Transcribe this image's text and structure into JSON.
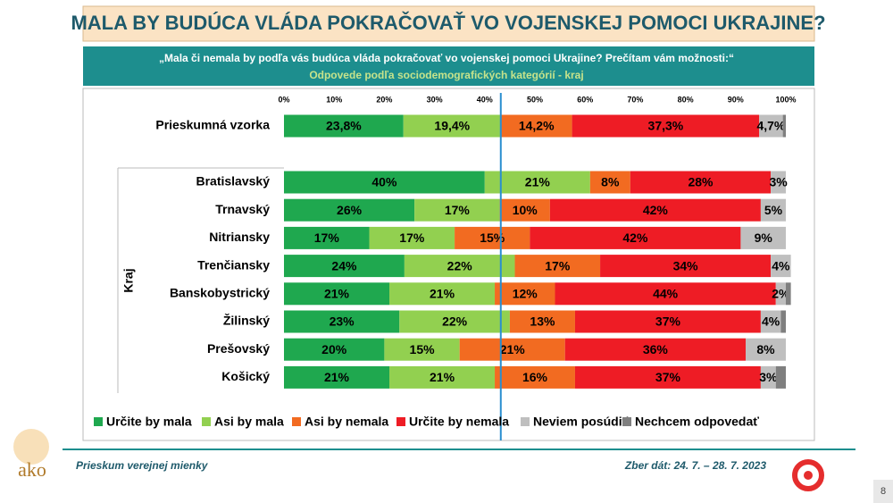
{
  "header": {
    "title": "MALA BY BUDÚCA VLÁDA POKRAČOVAŤ VO VOJENSKEJ POMOCI UKRAJINE?",
    "question": "„Mala či nemala by podľa vás budúca vláda pokračovať vo vojenskej pomoci Ukrajine? Prečítam vám možnosti:“",
    "subtitle": "Odpovede podľa sociodemografických kategórií - kraj"
  },
  "chart_data": {
    "type": "stacked-bar-horizontal",
    "y_label": "Kraj",
    "categories": [
      "Prieskumná vzorka",
      "Bratislavský",
      "Trnavský",
      "Nitriansky",
      "Trenčiansky",
      "Banskobystrický",
      "Žilinský",
      "Prešovský",
      "Košický"
    ],
    "xlim": [
      0,
      100
    ],
    "xticks": [
      {
        "value": 0,
        "label": "0%"
      },
      {
        "value": 10,
        "label": "10%"
      },
      {
        "value": 20,
        "label": "20%"
      },
      {
        "value": 30,
        "label": "30%"
      },
      {
        "value": 40,
        "label": "40%"
      },
      {
        "value": 50,
        "label": "50%"
      },
      {
        "value": 60,
        "label": "60%"
      },
      {
        "value": 70,
        "label": "70%"
      },
      {
        "value": 80,
        "label": "80%"
      },
      {
        "value": 90,
        "label": "90%"
      },
      {
        "value": 100,
        "label": "100%"
      }
    ],
    "reference_line": 43.2,
    "series": [
      {
        "name": "Určite by mala",
        "color": "#1fa84f",
        "values": [
          23.8,
          40,
          26,
          17,
          24,
          21,
          23,
          20,
          21
        ],
        "value_labels": [
          "23,8%",
          "40%",
          "26%",
          "17%",
          "24%",
          "21%",
          "23%",
          "20%",
          "21%"
        ]
      },
      {
        "name": "Asi by mala",
        "color": "#92d050",
        "values": [
          19.4,
          21,
          17,
          17,
          22,
          21,
          22,
          15,
          21
        ],
        "value_labels": [
          "19,4%",
          "21%",
          "17%",
          "17%",
          "22%",
          "21%",
          "22%",
          "15%",
          "21%"
        ]
      },
      {
        "name": "Asi by nemala",
        "color": "#f26b21",
        "values": [
          14.2,
          8,
          10,
          15,
          17,
          12,
          13,
          21,
          16
        ],
        "value_labels": [
          "14,2%",
          "8%",
          "10%",
          "15%",
          "17%",
          "12%",
          "13%",
          "21%",
          "16%"
        ]
      },
      {
        "name": "Určite by nemala",
        "color": "#ee1c25",
        "values": [
          37.3,
          28,
          42,
          42,
          34,
          44,
          37,
          36,
          37
        ],
        "value_labels": [
          "37,3%",
          "28%",
          "42%",
          "42%",
          "34%",
          "44%",
          "37%",
          "36%",
          "37%"
        ]
      },
      {
        "name": "Neviem posúdiť",
        "color": "#bfbfbf",
        "values": [
          4.7,
          3,
          5,
          9,
          4,
          2,
          4,
          8,
          3
        ],
        "value_labels": [
          "4,7%",
          "3%",
          "5%",
          "9%",
          "4%",
          "2%",
          "4%",
          "8%",
          "3%"
        ]
      },
      {
        "name": "Nechcem odpovedať",
        "color": "#7f7f7f",
        "values": [
          0.6,
          0,
          0,
          0,
          0,
          1,
          1,
          0,
          2
        ],
        "value_labels": [
          null,
          null,
          null,
          null,
          null,
          null,
          null,
          null,
          null
        ]
      }
    ]
  },
  "footer": {
    "survey": "Prieskum verejnej mienky",
    "dates": "Zber dát: 24. 7. – 28. 7. 2023",
    "logo": "ako",
    "page": "8"
  }
}
